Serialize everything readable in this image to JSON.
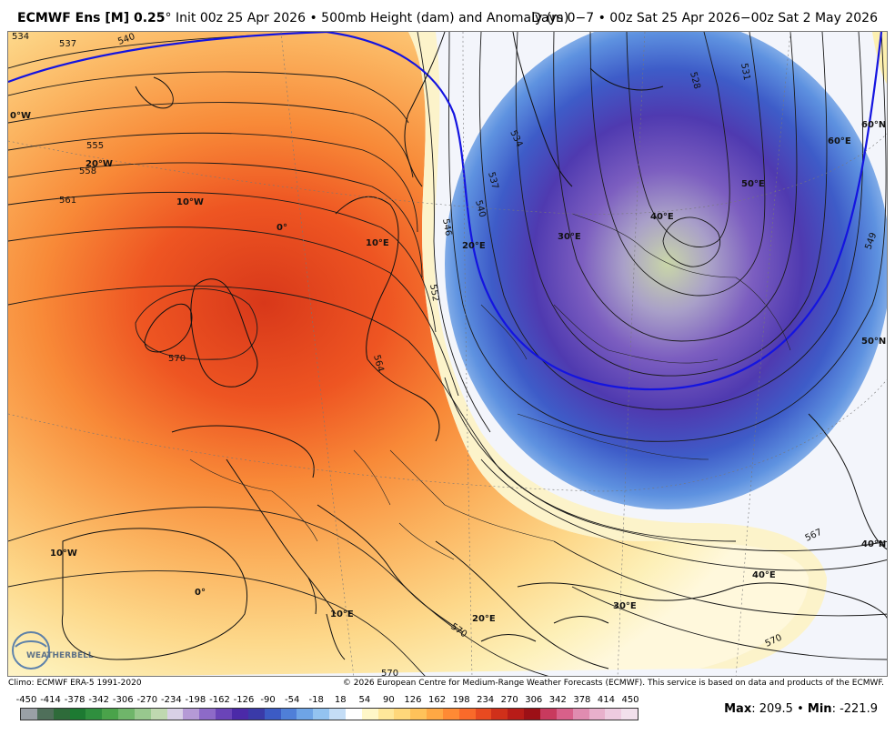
{
  "header": {
    "model": "ECMWF Ens [M] 0.25",
    "degree_symbol": "°",
    "init": "Init 00z 25 Apr 2026",
    "bullet": "•",
    "field": "500mb Height (dam) and Anomaly (m)",
    "period": "Days 0−7 • 00z Sat 25 Apr 2026−00z Sat 2 May 2026"
  },
  "map": {
    "longitude_labels": [
      "0°W",
      "20°W",
      "10°W",
      "0°",
      "10°E",
      "20°E",
      "30°E",
      "40°E",
      "50°E",
      "60°E",
      "10°W",
      "0°",
      "10°E",
      "20°E",
      "30°E",
      "40°E"
    ],
    "latitude_labels": [
      "60°N",
      "50°N",
      "40°N"
    ],
    "contour_labels": [
      "534",
      "537",
      "540",
      "555",
      "558",
      "561",
      "570",
      "528",
      "531",
      "534",
      "537",
      "540",
      "546",
      "552",
      "564",
      "549",
      "567",
      "570",
      "570",
      "570"
    ],
    "logo_text": "WEATHERBELL"
  },
  "footer": {
    "climo": "Climo: ECMWF ERA-5 1991-2020",
    "copyright": "© 2026 European Centre for Medium-Range Weather Forecasts (ECMWF). This service is based on data and products of the ECMWF."
  },
  "colorbar": {
    "ticks": [
      "-450",
      "-414",
      "-378",
      "-342",
      "-306",
      "-270",
      "-234",
      "-198",
      "-162",
      "-126",
      "-90",
      "-54",
      "-18",
      "18",
      "54",
      "90",
      "126",
      "162",
      "198",
      "234",
      "270",
      "306",
      "342",
      "378",
      "414",
      "450"
    ],
    "colors": [
      "#9aa0a6",
      "#4f6f5a",
      "#2e6b3a",
      "#1d7a32",
      "#2f8f3e",
      "#4aa34a",
      "#6fb56a",
      "#98c88e",
      "#bfd8b0",
      "#d8d0e6",
      "#b59ad6",
      "#8d6ac8",
      "#6a44b8",
      "#4b2aa8",
      "#3a3aa8",
      "#3c5bc4",
      "#4f7fd8",
      "#6ea4e6",
      "#93c3f0",
      "#c4ddf6",
      "#ffffff",
      "#fff7c8",
      "#ffe79a",
      "#ffd77a",
      "#ffc25a",
      "#ffa844",
      "#ff8a34",
      "#f96a2a",
      "#e84a20",
      "#d0301a",
      "#b81c18",
      "#9c1016",
      "#c83a5e",
      "#d8608a",
      "#e08cb0",
      "#e8b0cc",
      "#eecbe0",
      "#f2e0ec"
    ]
  },
  "stats": {
    "max_label": "Max",
    "max_value": "209.5",
    "min_label": "Min",
    "min_value": "-221.9"
  },
  "colors": {
    "positive_core": "#e8401e",
    "positive_mid": "#f99a3e",
    "positive_light": "#fde79a",
    "negative_core": "#5a3ab0",
    "negative_mid": "#3f63cc",
    "negative_light": "#a8cdf2",
    "contour_540": "#1414e0"
  }
}
